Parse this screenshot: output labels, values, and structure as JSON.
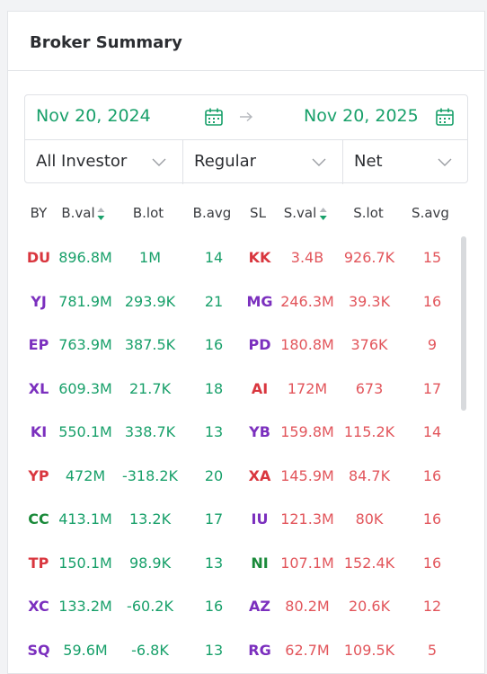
{
  "header": {
    "title": "Broker Summary"
  },
  "date_range": {
    "start": "Nov 20, 2024",
    "end": "Nov 20, 2025"
  },
  "filters": [
    "All Investor",
    "Regular",
    "Net"
  ],
  "table": {
    "columns": [
      "BY",
      "B.val",
      "B.lot",
      "B.avg",
      "SL",
      "S.val",
      "S.lot",
      "S.avg"
    ],
    "rows": [
      {
        "by": "DU",
        "by_color": "#d9363e",
        "b_val": "896.8M",
        "b_lot": "1M",
        "b_avg": "14",
        "sl": "KK",
        "sl_color": "#d9363e",
        "s_val": "3.4B",
        "s_lot": "926.7K",
        "s_avg": "15"
      },
      {
        "by": "YJ",
        "by_color": "#7b2fbe",
        "b_val": "781.9M",
        "b_lot": "293.9K",
        "b_avg": "21",
        "sl": "MG",
        "sl_color": "#7b2fbe",
        "s_val": "246.3M",
        "s_lot": "39.3K",
        "s_avg": "16"
      },
      {
        "by": "EP",
        "by_color": "#7b2fbe",
        "b_val": "763.9M",
        "b_lot": "387.5K",
        "b_avg": "16",
        "sl": "PD",
        "sl_color": "#7b2fbe",
        "s_val": "180.8M",
        "s_lot": "376K",
        "s_avg": "9"
      },
      {
        "by": "XL",
        "by_color": "#7b2fbe",
        "b_val": "609.3M",
        "b_lot": "21.7K",
        "b_avg": "18",
        "sl": "AI",
        "sl_color": "#d9363e",
        "s_val": "172M",
        "s_lot": "673",
        "s_avg": "17"
      },
      {
        "by": "KI",
        "by_color": "#7b2fbe",
        "b_val": "550.1M",
        "b_lot": "338.7K",
        "b_avg": "13",
        "sl": "YB",
        "sl_color": "#7b2fbe",
        "s_val": "159.8M",
        "s_lot": "115.2K",
        "s_avg": "14"
      },
      {
        "by": "YP",
        "by_color": "#d9363e",
        "b_val": "472M",
        "b_lot": "-318.2K",
        "b_avg": "20",
        "sl": "XA",
        "sl_color": "#d9363e",
        "s_val": "145.9M",
        "s_lot": "84.7K",
        "s_avg": "16"
      },
      {
        "by": "CC",
        "by_color": "#1a8a3a",
        "b_val": "413.1M",
        "b_lot": "13.2K",
        "b_avg": "17",
        "sl": "IU",
        "sl_color": "#7b2fbe",
        "s_val": "121.3M",
        "s_lot": "80K",
        "s_avg": "16"
      },
      {
        "by": "TP",
        "by_color": "#d9363e",
        "b_val": "150.1M",
        "b_lot": "98.9K",
        "b_avg": "13",
        "sl": "NI",
        "sl_color": "#1a8a3a",
        "s_val": "107.1M",
        "s_lot": "152.4K",
        "s_avg": "16"
      },
      {
        "by": "XC",
        "by_color": "#7b2fbe",
        "b_val": "133.2M",
        "b_lot": "-60.2K",
        "b_avg": "16",
        "sl": "AZ",
        "sl_color": "#7b2fbe",
        "s_val": "80.2M",
        "s_lot": "20.6K",
        "s_avg": "12"
      },
      {
        "by": "SQ",
        "by_color": "#7b2fbe",
        "b_val": "59.6M",
        "b_lot": "-6.8K",
        "b_avg": "13",
        "sl": "RG",
        "sl_color": "#7b2fbe",
        "s_val": "62.7M",
        "s_lot": "109.5K",
        "s_avg": "5"
      }
    ]
  }
}
